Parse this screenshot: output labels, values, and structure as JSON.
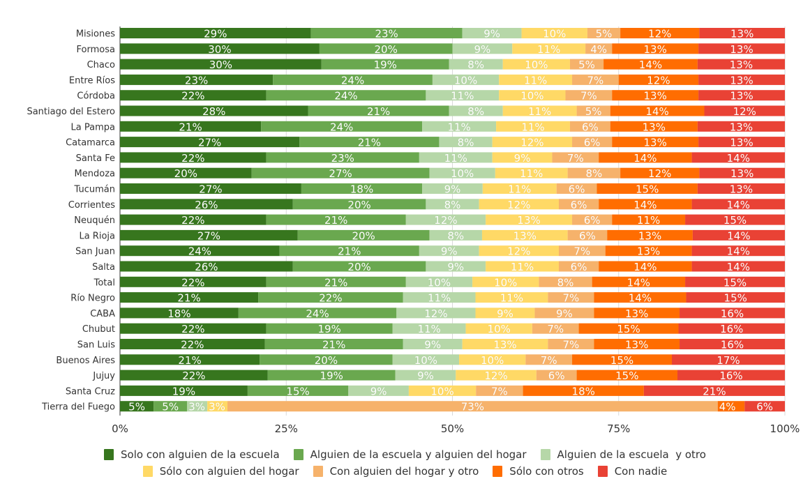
{
  "chart_data": {
    "type": "bar",
    "orientation": "horizontal",
    "stacked": "percent",
    "title": "",
    "xlabel": "",
    "ylabel": "",
    "xlim": [
      0,
      100
    ],
    "x_ticks": [
      "0%",
      "25%",
      "50%",
      "75%",
      "100%"
    ],
    "grid": true,
    "legend_position": "bottom",
    "categories": [
      "Misiones",
      "Formosa",
      "Chaco",
      "Entre Ríos",
      "Córdoba",
      "Santiago del Estero",
      "La Pampa",
      "Catamarca",
      "Santa Fe",
      "Mendoza",
      "Tucumán",
      "Corrientes",
      "Neuquén",
      "La Rioja",
      "San Juan",
      "Salta",
      "Total",
      "Río Negro",
      "CABA",
      "Chubut",
      "San Luis",
      "Buenos Aires",
      "Jujuy",
      "Santa Cruz",
      "Tierra del Fuego"
    ],
    "series": [
      {
        "name": "Solo con alguien de la escuela",
        "color": "#37761e",
        "values": [
          29,
          30,
          30,
          23,
          22,
          28,
          21,
          27,
          22,
          20,
          27,
          26,
          22,
          27,
          24,
          26,
          22,
          21,
          18,
          22,
          22,
          21,
          22,
          19,
          5
        ]
      },
      {
        "name": "Alguien de la escuela y alguien del hogar",
        "color": "#6aa84f",
        "values": [
          23,
          20,
          19,
          24,
          24,
          21,
          24,
          21,
          23,
          27,
          18,
          20,
          21,
          20,
          21,
          20,
          21,
          22,
          24,
          19,
          21,
          20,
          19,
          15,
          5
        ]
      },
      {
        "name": "Alguien de la escuela  y otro",
        "color": "#b6d7a8",
        "values": [
          9,
          9,
          8,
          10,
          11,
          8,
          11,
          8,
          11,
          10,
          9,
          8,
          12,
          8,
          9,
          9,
          10,
          11,
          12,
          11,
          9,
          10,
          9,
          9,
          3
        ]
      },
      {
        "name": "Sólo con alguien del hogar",
        "color": "#ffd966",
        "values": [
          10,
          11,
          10,
          11,
          10,
          11,
          11,
          12,
          9,
          11,
          11,
          12,
          13,
          13,
          12,
          11,
          10,
          11,
          9,
          10,
          13,
          10,
          12,
          10,
          3
        ]
      },
      {
        "name": "Con alguien del hogar y otro",
        "color": "#f6b26b",
        "values": [
          5,
          4,
          5,
          7,
          7,
          5,
          6,
          6,
          7,
          8,
          6,
          6,
          6,
          6,
          7,
          6,
          8,
          7,
          9,
          7,
          7,
          7,
          6,
          7,
          73
        ]
      },
      {
        "name": "Sólo con otros",
        "color": "#ff6d01",
        "values": [
          12,
          13,
          14,
          12,
          13,
          14,
          13,
          13,
          14,
          12,
          15,
          14,
          11,
          13,
          13,
          14,
          14,
          14,
          13,
          15,
          13,
          15,
          15,
          18,
          4
        ]
      },
      {
        "name": "Con nadie",
        "color": "#e94235",
        "values": [
          13,
          13,
          13,
          13,
          13,
          12,
          13,
          13,
          14,
          13,
          13,
          14,
          15,
          14,
          14,
          14,
          15,
          15,
          16,
          16,
          16,
          17,
          16,
          21,
          6
        ]
      }
    ]
  }
}
